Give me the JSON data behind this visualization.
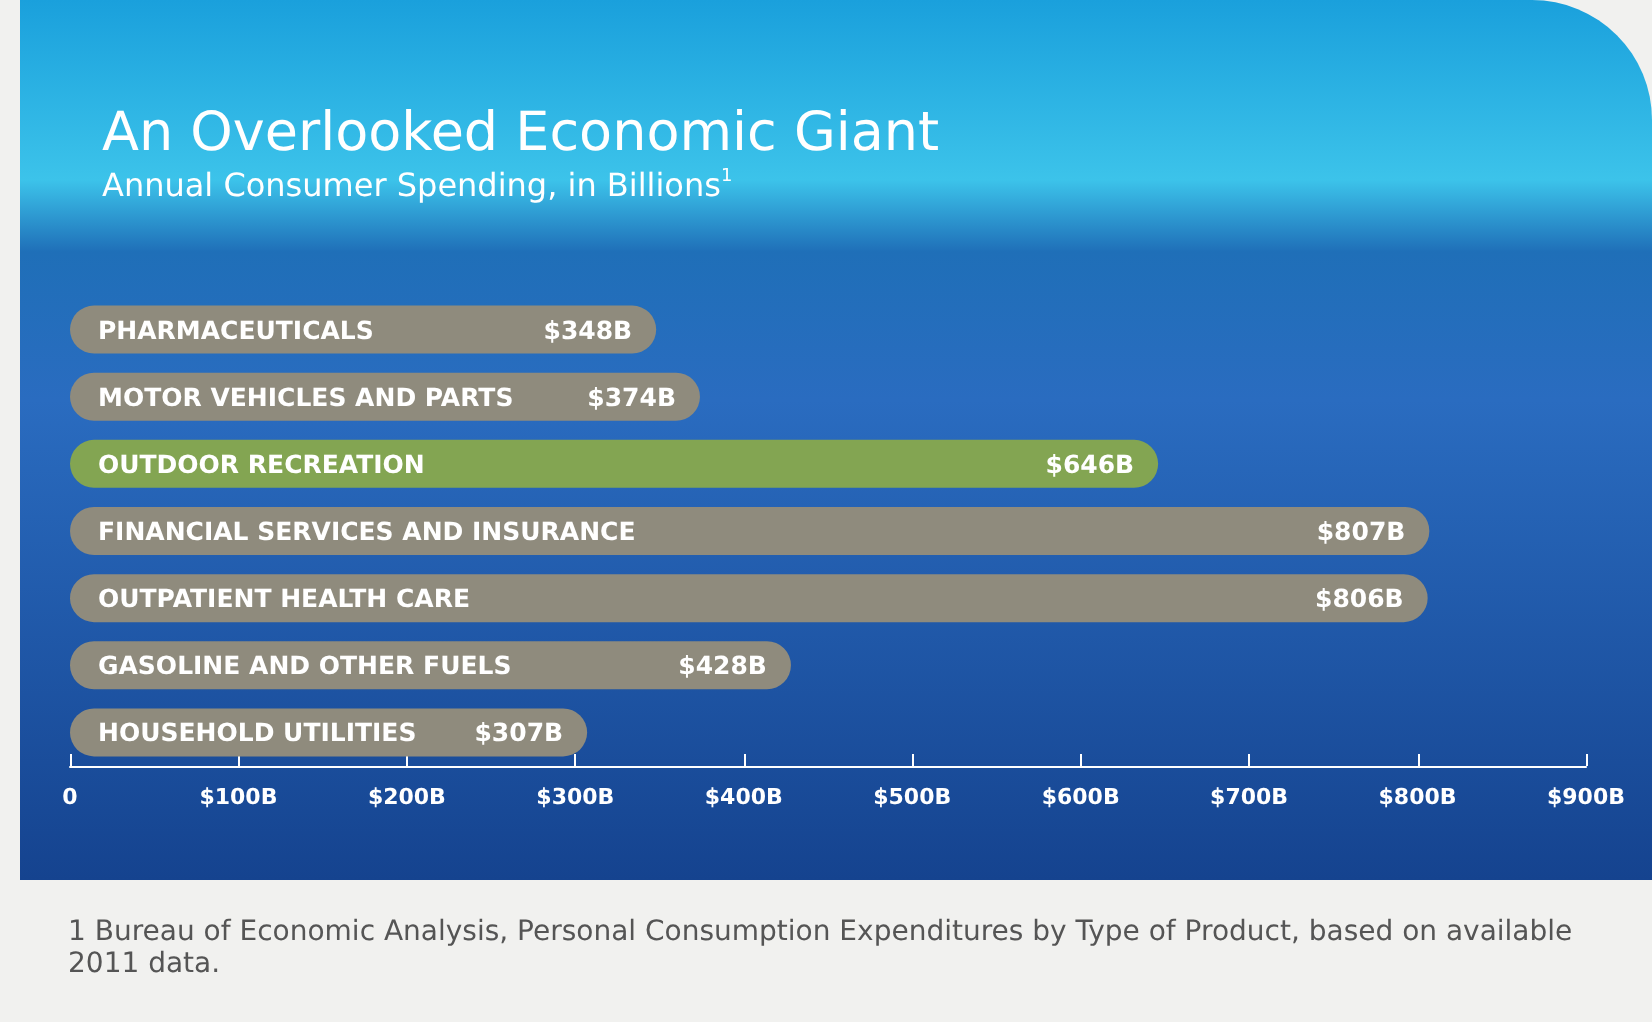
{
  "chart_data": {
    "type": "bar",
    "orientation": "horizontal",
    "title": "An Overlooked Economic Giant",
    "subtitle": "Annual Consumer Spending, in Billions$^{1}$",
    "categories": [
      "PHARMACEUTICALS",
      "MOTOR VEHICLES AND PARTS",
      "OUTDOOR RECREATION",
      "FINANCIAL SERVICES AND INSURANCE",
      "OUTPATIENT HEALTH CARE",
      "GASOLINE AND OTHER FUELS",
      "HOUSEHOLD UTILITIES"
    ],
    "values": [
      348,
      374,
      646,
      807,
      806,
      428,
      307
    ],
    "colors": [
      "#8f8b7d",
      "#8f8b7d",
      "#83a552",
      "#8f8b7d",
      "#8f8b7d",
      "#8f8b7d",
      "#8f8b7d"
    ],
    "value_labels": [
      "$348B",
      "$374B",
      "$646B",
      "$807B",
      "$806B",
      "$428B",
      "$307B"
    ],
    "xlim": [
      0,
      900
    ],
    "xticks": [
      0,
      {
        "value": 100,
        "label": "$100B"
      },
      {
        "value": 200,
        "label": "$200B"
      },
      {
        "value": 300,
        "label": "$300B"
      },
      {
        "value": 400,
        "label": "$400B"
      },
      {
        "value": 500,
        "label": "$500B"
      },
      {
        "value": 600,
        "label": "$600B"
      },
      {
        "value": 700,
        "label": "$700B"
      },
      {
        "value": 800,
        "label": "$800B"
      },
      {
        "value": 900,
        "label": "$900B"
      }
    ],
    "grid": false,
    "annotations": [
      "1 Bureau of Economic Analysis, Personal Consumption Expenditures by Type of Product, based on available 2011 data."
    ]
  }
}
